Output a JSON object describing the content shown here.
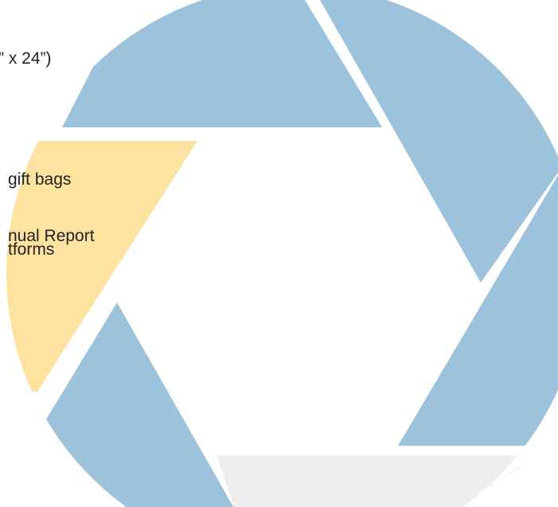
{
  "colors": {
    "blue_blade": "#9dc3dc",
    "yellow_blade": "#fde2a0",
    "gray_blade": "#eeeeee",
    "background": "#ffffff",
    "text": "#222222"
  },
  "text_lines": [
    "” x 24”)",
    "gift bags",
    "nual Report",
    "tforms"
  ]
}
